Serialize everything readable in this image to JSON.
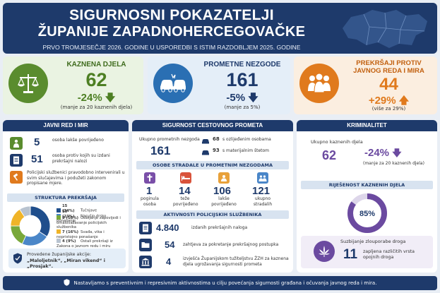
{
  "header": {
    "title_line1": "SIGURNOSNI POKAZATELJI",
    "title_line2": "ŽUPANIJE ZAPADNOHERCEGOVAČKE",
    "subtitle": "PRVO TROMJESEČJE 2026. GODINE U USPOREDBI S ISTIM RAZDOBLJEM 2025. GODINE"
  },
  "cards": [
    {
      "title": "KAZNENA DJELA",
      "value": "62",
      "change": "-24%",
      "direction": "down",
      "note": "(manje za 20 kaznenih djela)",
      "icon": "scales-icon",
      "color": "#5a8c2e"
    },
    {
      "title": "PROMETNE NEZGODE",
      "value": "161",
      "change": "-5%",
      "direction": "down",
      "note": "(manje za 5%)",
      "icon": "car-crash-icon",
      "color": "#2a6fb3"
    },
    {
      "title_line1": "PREKRŠAJI PROTIV",
      "title_line2": "JAVNOG REDA I MIRA",
      "value": "44",
      "change": "+29%",
      "direction": "up",
      "note": "(više za 29%)",
      "icon": "people-icon",
      "color": "#e07a1d"
    }
  ],
  "public_order": {
    "title": "JAVNI RED I MIR",
    "rows": [
      {
        "value": "5",
        "text": "osoba lakše povrijeđeno",
        "icon": "injured-person-icon"
      },
      {
        "value": "51",
        "text": "osoba protiv kojih su izdani prekršajni nalozi",
        "icon": "document-icon"
      }
    ],
    "note": "Policijski službenici pravodobno intervenirali u svim slučajevima i podužeti zakonom propisane mjere.",
    "structure_title": "STRUKTURA PREKRŠAJA",
    "structure": [
      {
        "pct": "15 (34%)",
        "label": "Tučnjave",
        "color": "#1f4e8c"
      },
      {
        "pct": "10 (23%)",
        "label": "Narušio drsko ponašanje",
        "color": "#4a86c8"
      },
      {
        "pct": "8 (18%)",
        "label": "Odbijanje zapovijedi i omalovažavanje policijskih službenika",
        "color": "#79a83a"
      },
      {
        "pct": "7 (16%)",
        "label": "Svađa, vika i nepristojno ponašanje",
        "color": "#f0b428"
      },
      {
        "pct": "4 (9%)",
        "label": "Ostali prekršaji iz Zakona o javnom redu i miru",
        "color": "#b8c3d0"
      }
    ],
    "actions_title": "Provedene županijske akcije:",
    "actions": "„Maloljetnik“, „Miran vikend“ i „Prosjak“."
  },
  "traffic": {
    "title": "SIGURNOST CESTOVNOG PROMETA",
    "total_label": "Ukupno prometnih nezgoda",
    "total": "161",
    "injured": {
      "value": "68",
      "text": "s ozlijeđenim osobama"
    },
    "damage": {
      "value": "93",
      "text": "s materijalnim štetom"
    },
    "victims_title": "OSOBE STRADALE U PROMETNIM NEZGODAMA",
    "victims": [
      {
        "value": "1",
        "label": "poginula osoba",
        "icon": "cross-icon",
        "color": "#7a4fa8"
      },
      {
        "value": "14",
        "label": "teže povrijeđeno",
        "icon": "bed-icon",
        "color": "#d9533b"
      },
      {
        "value": "106",
        "label": "lakše povrijeđeno",
        "icon": "person-icon",
        "color": "#e8a13a"
      },
      {
        "value": "121",
        "label": "ukupno stradalih",
        "icon": "group-icon",
        "color": "#4a86c8"
      }
    ],
    "activity_title": "AKTIVNOSTI POLICIJSKIH SLUŽBENIKA",
    "activities": [
      {
        "value": "4.840",
        "text": "izdanih prekršajnih naloga",
        "icon": "document-icon"
      },
      {
        "value": "54",
        "text": "zahtjeva za pokretanje prekršajnog postupka",
        "icon": "folder-icon"
      },
      {
        "value": "4",
        "text": "izvješća Županijskom tužiteljstvu ŽZH za kaznena djela ugrožavanja sigurnosti prometa",
        "icon": "courthouse-icon"
      }
    ]
  },
  "crime": {
    "title": "KRIMINALITET",
    "total_label": "Ukupno kaznenih djela",
    "total": "62",
    "change": "-24%",
    "change_note": "(manje za 20 kaznenih djela)",
    "solved_title": "RIJEŠENOST KAZNENIH DJELA",
    "solved_pct": "85%",
    "solved_value": 0.85,
    "drugs_title": "Suzbijanje zlouporabe droga",
    "drugs_value": "11",
    "drugs_text": "zapljena različitih vrsta opojnih droga",
    "color": "#6b4aa0"
  },
  "footer": {
    "text": "Nastavljamo s preventivnim i represivnim aktivnostima u cilju povećanja sigurnosti građana i očuvanja javnog reda i mira."
  }
}
